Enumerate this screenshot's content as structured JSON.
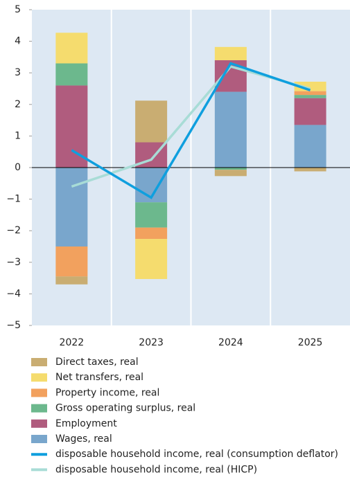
{
  "chart_data": {
    "type": "bar",
    "stacked": true,
    "categories": [
      "2022",
      "2023",
      "2024",
      "2025"
    ],
    "ylim": [
      -5,
      5
    ],
    "yticks": [
      {
        "value": -5,
        "label": "−5"
      },
      {
        "value": -4,
        "label": "−4"
      },
      {
        "value": -3,
        "label": "−3"
      },
      {
        "value": -2,
        "label": "−2"
      },
      {
        "value": -1,
        "label": "−1"
      },
      0,
      1,
      2,
      3,
      4,
      5
    ],
    "series": [
      {
        "name": "Direct taxes, real",
        "type": "bar",
        "color": "#c9ad72",
        "values": [
          -0.25,
          1.32,
          -0.2,
          -0.12
        ]
      },
      {
        "name": "Net transfers, real",
        "type": "bar",
        "color": "#f5dc6e",
        "values": [
          0.97,
          -1.27,
          0.42,
          0.3
        ]
      },
      {
        "name": "Property income, real",
        "type": "bar",
        "color": "#f2a15e",
        "values": [
          -0.95,
          -0.36,
          0,
          0.12
        ]
      },
      {
        "name": "Gross operating surplus, real",
        "type": "bar",
        "color": "#6cb88d",
        "values": [
          0.7,
          -0.8,
          -0.07,
          0.1
        ]
      },
      {
        "name": "Employment",
        "type": "bar",
        "color": "#b05c7e",
        "values": [
          2.6,
          0.8,
          1.0,
          0.85
        ]
      },
      {
        "name": "Wages, real",
        "type": "bar",
        "color": "#79a6cc",
        "values": [
          -2.5,
          -1.1,
          2.4,
          1.35
        ]
      },
      {
        "name": "disposable household income, real (consumption deflator)",
        "type": "line",
        "color": "#0f9fde",
        "values": [
          0.55,
          -0.95,
          3.3,
          2.45
        ]
      },
      {
        "name": "disposable household income, real (HICP)",
        "type": "line",
        "color": "#a8dcd6",
        "values": [
          -0.6,
          0.25,
          3.2,
          2.5
        ]
      }
    ]
  }
}
